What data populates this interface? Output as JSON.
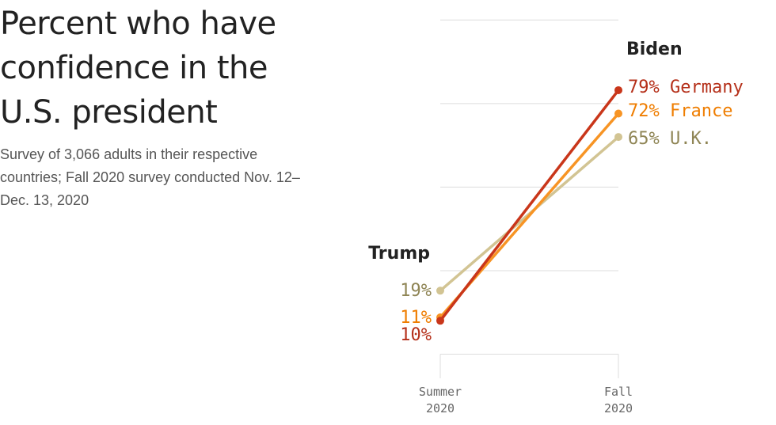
{
  "title": "Percent who have confidence in the U.S. president",
  "subtitle": "Survey of 3,066 adults in their respective countries; Fall 2020 survey conducted Nov. 12–Dec. 13, 2020",
  "chart_data": {
    "type": "line",
    "x": [
      "Summer 2020",
      "Fall 2020"
    ],
    "x_tick_labels": [
      [
        "Summer",
        "2020"
      ],
      [
        "Fall",
        "2020"
      ]
    ],
    "group_labels": [
      "Trump",
      "Biden"
    ],
    "ylim": [
      0,
      100
    ],
    "grid": true,
    "series": [
      {
        "name": "Germany",
        "values": [
          10,
          79
        ],
        "color": "#c9361a",
        "label_color": "#b5301a",
        "start_label": "10%",
        "end_label": "79% Germany"
      },
      {
        "name": "France",
        "values": [
          11,
          72
        ],
        "color": "#f79424",
        "label_color": "#ef7d00",
        "start_label": "11%",
        "end_label": "72% France"
      },
      {
        "name": "U.K.",
        "values": [
          19,
          65
        ],
        "color": "#d2c493",
        "label_color": "#8f8555",
        "start_label": "19%",
        "end_label": "65% U.K."
      }
    ]
  }
}
